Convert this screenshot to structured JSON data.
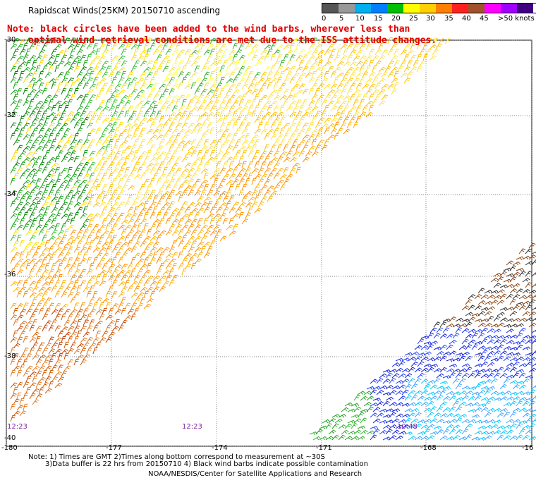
{
  "title": "Rapidscat Winds(25KM) 20150710 ascending",
  "note_line1": "Note: black circles have been added to the wind barbs, wherever less than",
  "note_line2": "optimal wind retrieval conditions are met due to the ISS attitude changes.",
  "legend": {
    "labels": [
      "0",
      "5",
      "10",
      "15",
      "20",
      "25",
      "30",
      "35",
      "40",
      "45",
      ">50 knots"
    ],
    "colors": [
      "#555555",
      "#8c8c8c",
      "#00b0f0",
      "#0060ff",
      "#00c000",
      "#008000",
      "#ffff00",
      "#ffc000",
      "#ff8000",
      "#ff2020",
      "#e00000",
      "#8b4513",
      "#d000d0",
      "#a000ff",
      "#400080"
    ]
  },
  "lat_labels": [
    "-30",
    "-32",
    "-34",
    "-36",
    "-38",
    "-40"
  ],
  "lon_labels": [
    "-180",
    "-177",
    "-174",
    "-171",
    "-168",
    "-16"
  ],
  "times": [
    "12:23",
    "12:23",
    "10:48"
  ],
  "footer_line1": "Note: 1) Times are GMT 2)Times along bottom correspond to measurement at ~30S",
  "footer_line2": "3)Data buffer is 22 hrs from 20150710 4) Black wind barbs indicate possible contamination",
  "footer_line3": "NOAA/NESDIS/Center for Satellite Applications and Research"
}
